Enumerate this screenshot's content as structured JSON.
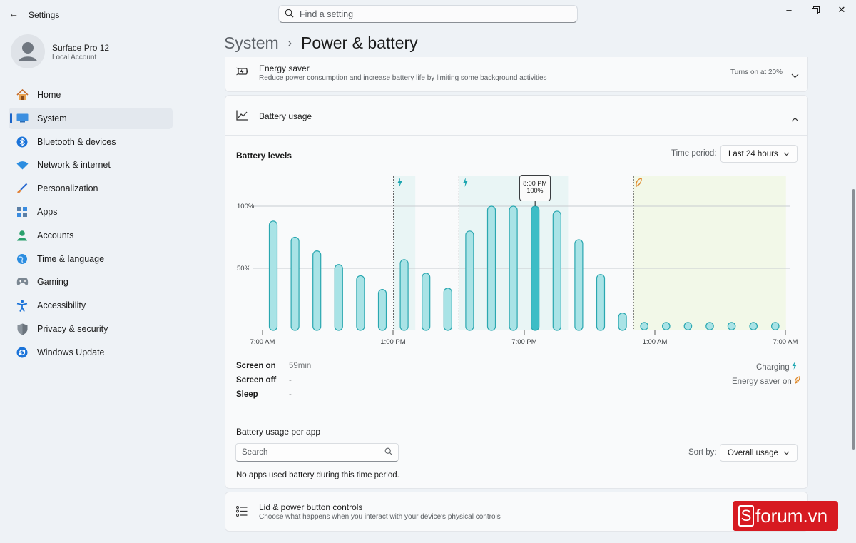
{
  "window": {
    "title": "Settings"
  },
  "search": {
    "placeholder": "Find a setting"
  },
  "profile": {
    "name": "Surface Pro 12",
    "account": "Local Account"
  },
  "nav": {
    "items": [
      {
        "label": "Home",
        "icon": "home-icon",
        "active": false
      },
      {
        "label": "System",
        "icon": "system-icon",
        "active": true
      },
      {
        "label": "Bluetooth & devices",
        "icon": "bluetooth-icon",
        "active": false
      },
      {
        "label": "Network & internet",
        "icon": "wifi-icon",
        "active": false
      },
      {
        "label": "Personalization",
        "icon": "brush-icon",
        "active": false
      },
      {
        "label": "Apps",
        "icon": "apps-icon",
        "active": false
      },
      {
        "label": "Accounts",
        "icon": "accounts-icon",
        "active": false
      },
      {
        "label": "Time & language",
        "icon": "globe-icon",
        "active": false
      },
      {
        "label": "Gaming",
        "icon": "gamepad-icon",
        "active": false
      },
      {
        "label": "Accessibility",
        "icon": "accessibility-icon",
        "active": false
      },
      {
        "label": "Privacy & security",
        "icon": "shield-icon",
        "active": false
      },
      {
        "label": "Windows Update",
        "icon": "update-icon",
        "active": false
      }
    ]
  },
  "breadcrumb": {
    "parent": "System",
    "separator": "›",
    "current": "Power & battery"
  },
  "energy_saver": {
    "title": "Energy saver",
    "description": "Reduce power consumption and increase battery life by limiting some background activities",
    "status": "Turns on at 20%"
  },
  "battery_usage": {
    "title": "Battery usage",
    "levels_title": "Battery levels",
    "time_period_label": "Time period:",
    "time_period_value": "Last 24 hours",
    "tooltip_time": "8:00 PM",
    "tooltip_value": "100%",
    "stats": [
      {
        "label": "Screen on",
        "value": "59min"
      },
      {
        "label": "Screen off",
        "value": "-"
      },
      {
        "label": "Sleep",
        "value": "-"
      }
    ],
    "legend": {
      "charging": "Charging",
      "energy_saver_on": "Energy saver on"
    }
  },
  "chart_data": {
    "type": "bar",
    "title": "Battery levels",
    "x_tick_labels": [
      "7:00 AM",
      "1:00 PM",
      "7:00 PM",
      "1:00 AM",
      "7:00 AM"
    ],
    "y_tick_labels": [
      "100%",
      "50%"
    ],
    "ylim": [
      0,
      100
    ],
    "grid": true,
    "values": [
      88,
      75,
      64,
      53,
      44,
      33,
      57,
      46,
      34,
      80,
      100,
      100,
      100,
      96,
      73,
      45,
      14,
      0,
      0,
      0,
      0,
      0,
      0,
      0
    ],
    "highlighted_index": 12,
    "charging_markers_index": [
      6,
      9
    ],
    "charging_bands": [
      [
        6,
        6
      ],
      [
        9,
        13
      ]
    ],
    "energy_saver_start_index": 17,
    "colors": {
      "bar_fill": "#a9e3e6",
      "bar_stroke": "#2aa7b0",
      "highlight_fill": "#3dbdc6",
      "charging": "#1aa5b0",
      "energy_saver": "#e08a2b",
      "energy_saver_band": "#f2f8e8",
      "charging_band": "#e9f5f5"
    }
  },
  "per_app": {
    "title": "Battery usage per app",
    "search_placeholder": "Search",
    "sort_label": "Sort by:",
    "sort_value": "Overall usage",
    "empty_message": "No apps used battery during this time period."
  },
  "lid": {
    "title": "Lid & power button controls",
    "description": "Choose what happens when you interact with your device's physical controls"
  },
  "watermark": {
    "text": "forum.vn"
  }
}
